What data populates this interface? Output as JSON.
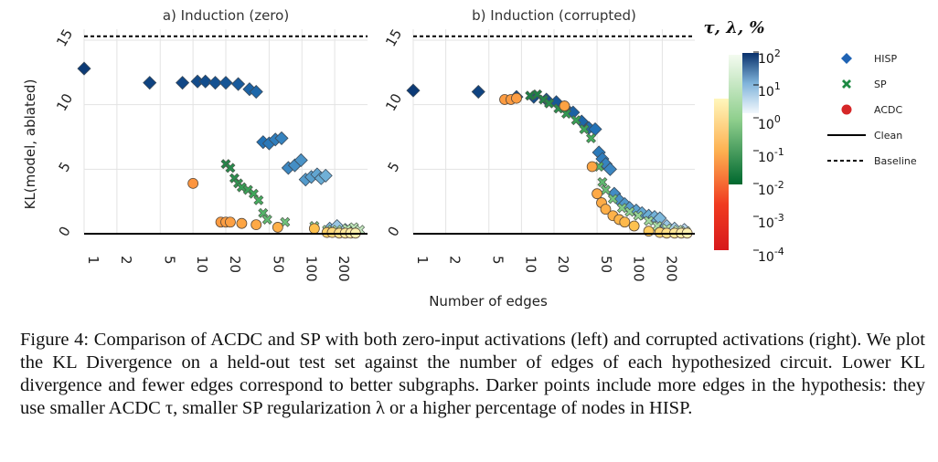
{
  "figure": {
    "ylabel": "KL(model, ablated)",
    "xlabel": "Number of edges",
    "colorbar_label": "τ, λ, %",
    "colorbar_ticks": [
      "10^2",
      "10^1",
      "10^0",
      "10^-1",
      "10^-2",
      "10^-3",
      "10^-4"
    ],
    "legend": [
      {
        "label": "HISP",
        "marker": "diamond",
        "color": "#1f63b4"
      },
      {
        "label": "SP",
        "marker": "cross",
        "color": "#1d8a43"
      },
      {
        "label": "ACDC",
        "marker": "circle",
        "color": "#d62728"
      },
      {
        "label": "Clean",
        "marker": "solid-line",
        "color": "#000000"
      },
      {
        "label": "Baseline",
        "marker": "dashed-line",
        "color": "#000000"
      }
    ],
    "colors": {
      "grid": "#e3e3e3",
      "clean": "#000000",
      "baseline": "#000000"
    }
  },
  "chart_data": [
    {
      "type": "scatter",
      "title": "a) Induction (zero)",
      "x_scale": "log",
      "xlim": [
        1,
        400
      ],
      "ylim": [
        0,
        15
      ],
      "x_ticks": [
        1,
        2,
        5,
        10,
        20,
        50,
        100,
        200
      ],
      "y_ticks": [
        0,
        5,
        10,
        15
      ],
      "clean_y": 0,
      "baseline_y": 15.3,
      "series": [
        {
          "name": "HISP",
          "points": [
            [
              1,
              12.8,
              0.95
            ],
            [
              4,
              11.7,
              0.9
            ],
            [
              8,
              11.7,
              0.88
            ],
            [
              11,
              11.8,
              0.86
            ],
            [
              13,
              11.8,
              0.85
            ],
            [
              16,
              11.7,
              0.83
            ],
            [
              20,
              11.7,
              0.81
            ],
            [
              26,
              11.6,
              0.78
            ],
            [
              33,
              11.2,
              0.74
            ],
            [
              38,
              11.0,
              0.72
            ],
            [
              44,
              7.1,
              0.66
            ],
            [
              50,
              7.0,
              0.63
            ],
            [
              57,
              7.3,
              0.6
            ],
            [
              65,
              7.4,
              0.57
            ],
            [
              75,
              5.1,
              0.54
            ],
            [
              86,
              5.3,
              0.51
            ],
            [
              98,
              5.7,
              0.48
            ],
            [
              108,
              4.2,
              0.44
            ],
            [
              122,
              4.4,
              0.41
            ],
            [
              138,
              4.6,
              0.38
            ],
            [
              150,
              4.3,
              0.35
            ],
            [
              165,
              4.5,
              0.32
            ],
            [
              180,
              0.4,
              0.25
            ],
            [
              210,
              0.6,
              0.2
            ],
            [
              250,
              0.3,
              0.15
            ],
            [
              300,
              0.2,
              0.1
            ]
          ]
        },
        {
          "name": "SP",
          "points": [
            [
              20,
              5.4,
              0.82
            ],
            [
              22,
              5.1,
              0.8
            ],
            [
              24,
              4.3,
              0.78
            ],
            [
              26,
              3.9,
              0.75
            ],
            [
              28,
              3.6,
              0.72
            ],
            [
              32,
              3.4,
              0.7
            ],
            [
              36,
              3.1,
              0.68
            ],
            [
              40,
              2.6,
              0.65
            ],
            [
              44,
              1.6,
              0.6
            ],
            [
              48,
              1.1,
              0.55
            ],
            [
              70,
              0.9,
              0.5
            ],
            [
              130,
              0.6,
              0.4
            ],
            [
              170,
              0.3,
              0.32
            ],
            [
              210,
              0.3,
              0.28
            ],
            [
              260,
              0.4,
              0.22
            ],
            [
              300,
              0.5,
              0.18
            ],
            [
              340,
              0.3,
              0.15
            ]
          ]
        },
        {
          "name": "ACDC",
          "points": [
            [
              10,
              3.9,
              0.62
            ],
            [
              18,
              0.9,
              0.58
            ],
            [
              20,
              0.9,
              0.57
            ],
            [
              22,
              0.9,
              0.55
            ],
            [
              28,
              0.8,
              0.52
            ],
            [
              38,
              0.7,
              0.5
            ],
            [
              60,
              0.5,
              0.46
            ],
            [
              130,
              0.4,
              0.36
            ],
            [
              170,
              0.1,
              0.25
            ],
            [
              190,
              0.1,
              0.2
            ],
            [
              220,
              0.05,
              0.15
            ],
            [
              250,
              0.05,
              0.1
            ],
            [
              280,
              0.05,
              0.07
            ],
            [
              310,
              0.05,
              0.04
            ]
          ]
        }
      ]
    },
    {
      "type": "scatter",
      "title": "b) Induction (corrupted)",
      "x_scale": "log",
      "xlim": [
        1,
        400
      ],
      "ylim": [
        0,
        15
      ],
      "x_ticks": [
        1,
        2,
        5,
        10,
        20,
        50,
        100,
        200
      ],
      "y_ticks": [
        0,
        5,
        10,
        15
      ],
      "clean_y": 0,
      "baseline_y": 15.3,
      "series": [
        {
          "name": "HISP",
          "points": [
            [
              1,
              11.1,
              0.95
            ],
            [
              4,
              11.0,
              0.9
            ],
            [
              9,
              10.6,
              0.86
            ],
            [
              13,
              10.6,
              0.84
            ],
            [
              17,
              10.4,
              0.82
            ],
            [
              21,
              10.2,
              0.8
            ],
            [
              25,
              9.8,
              0.78
            ],
            [
              30,
              9.4,
              0.75
            ],
            [
              36,
              8.7,
              0.72
            ],
            [
              42,
              8.2,
              0.69
            ],
            [
              48,
              8.1,
              0.66
            ],
            [
              52,
              6.3,
              0.62
            ],
            [
              56,
              5.8,
              0.6
            ],
            [
              60,
              5.4,
              0.57
            ],
            [
              66,
              5.0,
              0.55
            ],
            [
              72,
              3.1,
              0.52
            ],
            [
              80,
              2.6,
              0.49
            ],
            [
              90,
              2.3,
              0.46
            ],
            [
              100,
              2.0,
              0.43
            ],
            [
              115,
              1.8,
              0.4
            ],
            [
              130,
              1.6,
              0.37
            ],
            [
              150,
              1.4,
              0.34
            ],
            [
              170,
              1.3,
              0.31
            ],
            [
              190,
              1.2,
              0.28
            ],
            [
              220,
              0.6,
              0.2
            ],
            [
              260,
              0.4,
              0.15
            ],
            [
              320,
              0.3,
              0.1
            ]
          ]
        },
        {
          "name": "SP",
          "points": [
            [
              12,
              10.7,
              0.85
            ],
            [
              14,
              10.8,
              0.84
            ],
            [
              16,
              10.4,
              0.82
            ],
            [
              18,
              10.1,
              0.8
            ],
            [
              22,
              9.7,
              0.78
            ],
            [
              26,
              9.3,
              0.75
            ],
            [
              32,
              8.8,
              0.72
            ],
            [
              38,
              8.1,
              0.69
            ],
            [
              44,
              7.4,
              0.66
            ],
            [
              52,
              5.2,
              0.6
            ],
            [
              56,
              4.0,
              0.56
            ],
            [
              60,
              3.4,
              0.52
            ],
            [
              70,
              2.7,
              0.48
            ],
            [
              85,
              2.0,
              0.44
            ],
            [
              100,
              1.7,
              0.4
            ],
            [
              120,
              1.4,
              0.36
            ],
            [
              150,
              1.0,
              0.32
            ],
            [
              180,
              0.6,
              0.28
            ],
            [
              220,
              0.4,
              0.22
            ],
            [
              280,
              0.3,
              0.16
            ],
            [
              330,
              0.2,
              0.12
            ]
          ]
        },
        {
          "name": "ACDC",
          "points": [
            [
              7,
              10.4,
              0.58
            ],
            [
              8,
              10.4,
              0.58
            ],
            [
              9,
              10.5,
              0.57
            ],
            [
              25,
              9.9,
              0.54
            ],
            [
              45,
              5.2,
              0.52
            ],
            [
              50,
              3.1,
              0.5
            ],
            [
              55,
              2.4,
              0.48
            ],
            [
              60,
              1.9,
              0.46
            ],
            [
              70,
              1.4,
              0.44
            ],
            [
              80,
              1.1,
              0.42
            ],
            [
              90,
              0.9,
              0.4
            ],
            [
              110,
              0.6,
              0.35
            ],
            [
              150,
              0.2,
              0.28
            ],
            [
              190,
              0.1,
              0.22
            ],
            [
              220,
              0.05,
              0.16
            ],
            [
              260,
              0.05,
              0.11
            ],
            [
              300,
              0.05,
              0.07
            ],
            [
              340,
              0.05,
              0.04
            ]
          ]
        }
      ]
    }
  ],
  "caption": "Figure 4: Comparison of ACDC and SP with both zero-input activations (left) and corrupted activations (right). We plot the KL Divergence on a held-out test set against the number of edges of each hypothesized circuit. Lower KL divergence and fewer edges correspond to better subgraphs. Darker points include more edges in the hypothesis: they use smaller ACDC τ, smaller SP regularization λ or a higher percentage of nodes in HISP."
}
